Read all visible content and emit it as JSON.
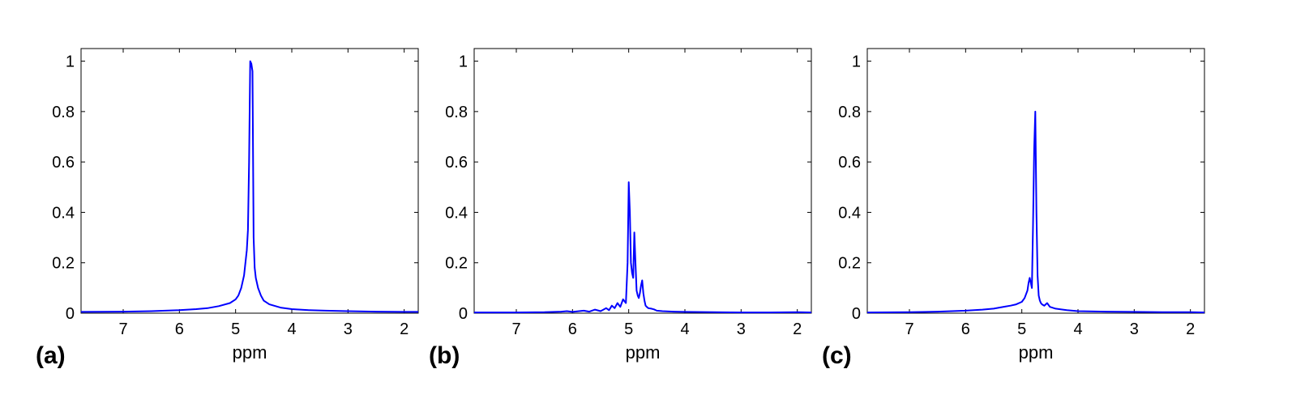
{
  "chart_data": [
    {
      "type": "line",
      "panel_label": "(a)",
      "xlabel": "ppm",
      "ylabel": "",
      "x_reversed": true,
      "xlim": [
        7.75,
        1.75
      ],
      "ylim": [
        0,
        1.05
      ],
      "xticks": [
        "7",
        "6",
        "5",
        "4",
        "3",
        "2"
      ],
      "yticks": [
        "0",
        "0.2",
        "0.4",
        "0.6",
        "0.8",
        "1"
      ],
      "grid": false,
      "color": "#0000ff",
      "series": [
        {
          "x": [
            7.75,
            7.0,
            6.5,
            6.0,
            5.7,
            5.5,
            5.3,
            5.1,
            5.0,
            4.95,
            4.9,
            4.85,
            4.8,
            4.78,
            4.76,
            4.74,
            4.72,
            4.7,
            4.68,
            4.66,
            4.64,
            4.6,
            4.55,
            4.5,
            4.4,
            4.2,
            4.0,
            3.7,
            3.4,
            3.0,
            2.5,
            2.0,
            1.75
          ],
          "y": [
            0.005,
            0.006,
            0.008,
            0.012,
            0.016,
            0.02,
            0.028,
            0.04,
            0.055,
            0.07,
            0.1,
            0.15,
            0.25,
            0.33,
            0.6,
            1.0,
            0.99,
            0.96,
            0.3,
            0.18,
            0.14,
            0.1,
            0.07,
            0.05,
            0.035,
            0.022,
            0.016,
            0.012,
            0.01,
            0.008,
            0.006,
            0.005,
            0.005
          ]
        }
      ]
    },
    {
      "type": "line",
      "panel_label": "(b)",
      "xlabel": "ppm",
      "ylabel": "",
      "x_reversed": true,
      "xlim": [
        7.75,
        1.75
      ],
      "ylim": [
        0,
        1.05
      ],
      "xticks": [
        "7",
        "6",
        "5",
        "4",
        "3",
        "2"
      ],
      "yticks": [
        "0",
        "0.2",
        "0.4",
        "0.6",
        "0.8",
        "1"
      ],
      "grid": false,
      "color": "#0000ff",
      "series": [
        {
          "x": [
            7.75,
            7.0,
            6.5,
            6.2,
            6.1,
            6.0,
            5.8,
            5.7,
            5.6,
            5.5,
            5.4,
            5.35,
            5.3,
            5.25,
            5.2,
            5.15,
            5.1,
            5.05,
            5.02,
            5.0,
            4.98,
            4.96,
            4.94,
            4.92,
            4.9,
            4.88,
            4.86,
            4.84,
            4.82,
            4.8,
            4.78,
            4.76,
            4.74,
            4.72,
            4.7,
            4.68,
            4.65,
            4.6,
            4.55,
            4.5,
            4.4,
            4.2,
            4.0,
            3.5,
            3.0,
            2.5,
            2.0,
            1.75
          ],
          "y": [
            0.003,
            0.003,
            0.004,
            0.006,
            0.008,
            0.005,
            0.01,
            0.006,
            0.014,
            0.008,
            0.02,
            0.012,
            0.03,
            0.02,
            0.04,
            0.025,
            0.055,
            0.04,
            0.2,
            0.52,
            0.4,
            0.2,
            0.16,
            0.14,
            0.32,
            0.2,
            0.09,
            0.07,
            0.06,
            0.08,
            0.11,
            0.13,
            0.08,
            0.05,
            0.03,
            0.025,
            0.02,
            0.018,
            0.015,
            0.01,
            0.008,
            0.006,
            0.005,
            0.004,
            0.003,
            0.003,
            0.004,
            0.003
          ]
        }
      ]
    },
    {
      "type": "line",
      "panel_label": "(c)",
      "xlabel": "ppm",
      "ylabel": "",
      "x_reversed": true,
      "xlim": [
        7.75,
        1.75
      ],
      "ylim": [
        0,
        1.05
      ],
      "xticks": [
        "7",
        "6",
        "5",
        "4",
        "3",
        "2"
      ],
      "yticks": [
        "0",
        "0.2",
        "0.4",
        "0.6",
        "0.8",
        "1"
      ],
      "grid": false,
      "color": "#0000ff",
      "series": [
        {
          "x": [
            7.75,
            7.0,
            6.5,
            6.0,
            5.7,
            5.5,
            5.4,
            5.3,
            5.2,
            5.1,
            5.0,
            4.95,
            4.9,
            4.88,
            4.86,
            4.84,
            4.82,
            4.8,
            4.78,
            4.76,
            4.74,
            4.72,
            4.7,
            4.68,
            4.66,
            4.64,
            4.6,
            4.55,
            4.5,
            4.4,
            4.2,
            4.0,
            3.5,
            3.0,
            2.5,
            2.0,
            1.75
          ],
          "y": [
            0.003,
            0.004,
            0.006,
            0.01,
            0.014,
            0.018,
            0.022,
            0.026,
            0.03,
            0.035,
            0.045,
            0.06,
            0.09,
            0.12,
            0.14,
            0.12,
            0.1,
            0.35,
            0.65,
            0.8,
            0.4,
            0.15,
            0.07,
            0.05,
            0.04,
            0.035,
            0.03,
            0.04,
            0.025,
            0.018,
            0.012,
            0.008,
            0.006,
            0.005,
            0.004,
            0.004,
            0.003
          ]
        }
      ]
    }
  ]
}
